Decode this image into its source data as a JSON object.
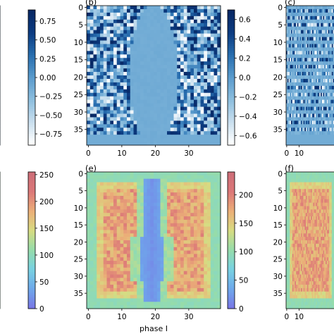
{
  "figure": {
    "xlabel_bottom": "phase I"
  },
  "chart_data": [
    {
      "id": "a",
      "type": "heatmap",
      "panel_label": "",
      "colormap": "diverging-blue",
      "rows": 40,
      "cols": 40,
      "tick_labels_y": [],
      "tick_labels_x": [],
      "colorbar": {
        "range": [
          -0.9,
          0.9
        ],
        "ticks": [
          0.75,
          0.5,
          0.25,
          0.0,
          -0.25,
          -0.5,
          -0.75
        ],
        "tick_labels": [
          "0.75",
          "0.50",
          "0.25",
          "0.00",
          "−0.25",
          "−0.50",
          "−0.75"
        ]
      }
    },
    {
      "id": "b",
      "type": "heatmap",
      "panel_label": "(b)",
      "colormap": "diverging-blue",
      "rows": 40,
      "cols": 40,
      "pattern": "central vertical lens of near-zero values, noisy values elsewhere",
      "tick_labels_y": [
        "0",
        "5",
        "10",
        "15",
        "20",
        "25",
        "30",
        "35"
      ],
      "tick_labels_x": [
        "0",
        "10",
        "20",
        "30"
      ],
      "colorbar": {
        "range": [
          -0.7,
          0.7
        ],
        "ticks": [
          0.6,
          0.4,
          0.2,
          0.0,
          -0.2,
          -0.4,
          -0.6
        ],
        "tick_labels": [
          "0.6",
          "0.4",
          "0.2",
          "0.0",
          "−0.2",
          "−0.4",
          "−0.6"
        ]
      }
    },
    {
      "id": "c",
      "type": "heatmap",
      "panel_label": "(c)",
      "colormap": "diverging-blue",
      "rows": 40,
      "cols": 40,
      "tick_labels_y": [
        "0",
        "5",
        "10",
        "15",
        "20",
        "25",
        "30",
        "35"
      ],
      "tick_labels_x": [
        "0",
        "10"
      ]
    },
    {
      "id": "d",
      "type": "heatmap",
      "panel_label": "",
      "colormap": "jet-translucent",
      "rows": 40,
      "cols": 40,
      "tick_labels_y": [],
      "tick_labels_x": [],
      "colorbar": {
        "range": [
          0,
          255
        ],
        "ticks": [
          250,
          200,
          150,
          100,
          50,
          0
        ],
        "tick_labels": [
          "250",
          "200",
          "150",
          "100",
          "50",
          "0"
        ]
      }
    },
    {
      "id": "e",
      "type": "heatmap",
      "panel_label": "(e)",
      "colormap": "jet-translucent",
      "rows": 40,
      "cols": 40,
      "pattern": "blue vertical channel in the center, red/orange noisy bulk, cyan border",
      "tick_labels_y": [
        "0",
        "5",
        "10",
        "15",
        "20",
        "25",
        "30",
        "35"
      ],
      "tick_labels_x": [
        "0",
        "10",
        "20",
        "30"
      ],
      "colorbar": {
        "range": [
          0,
          240
        ],
        "ticks": [
          200,
          150,
          100,
          50,
          0
        ],
        "tick_labels": [
          "200",
          "150",
          "100",
          "50",
          "0"
        ]
      }
    },
    {
      "id": "f",
      "type": "heatmap",
      "panel_label": "(f)",
      "colormap": "jet-translucent",
      "rows": 40,
      "cols": 40,
      "tick_labels_y": [
        "0",
        "5",
        "10",
        "15",
        "20",
        "25",
        "30",
        "35"
      ],
      "tick_labels_x": [
        "0",
        "10"
      ]
    }
  ]
}
